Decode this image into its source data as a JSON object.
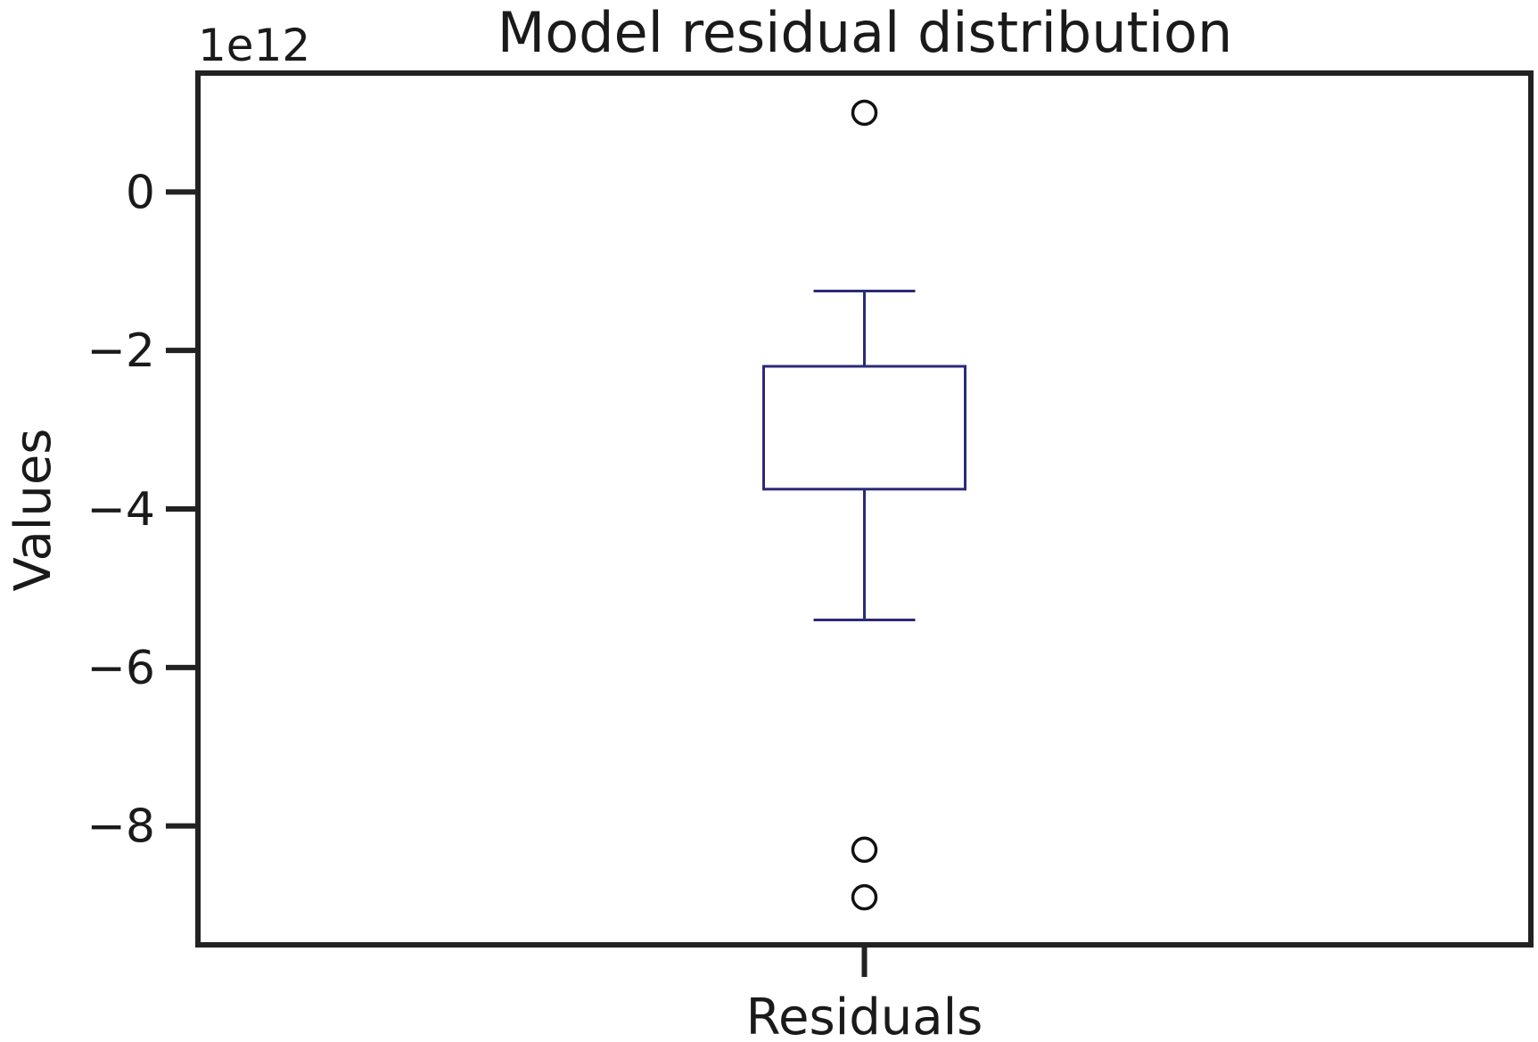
{
  "chart_data": {
    "type": "box",
    "title": "Model residual distribution",
    "ylabel": "Values",
    "xlabel": "",
    "y_offset_label": "1e12",
    "y_scale": 1000000000000.0,
    "ylim": [
      -9.5,
      1.5
    ],
    "yticks": [
      0,
      -2,
      -4,
      -6,
      -8
    ],
    "ytick_labels": [
      "0",
      "−2",
      "−4",
      "−6",
      "−8"
    ],
    "categories": [
      "Residuals"
    ],
    "grid": false,
    "series": [
      {
        "category": "Residuals",
        "whisker_high": -1.25,
        "q3": -2.2,
        "q1": -3.75,
        "whisker_low": -5.4,
        "outliers": [
          1.0,
          -8.3,
          -8.9
        ]
      }
    ],
    "colors": {
      "box": "#2b2a7a",
      "axes": "#222222",
      "outlier": "#111111"
    }
  }
}
